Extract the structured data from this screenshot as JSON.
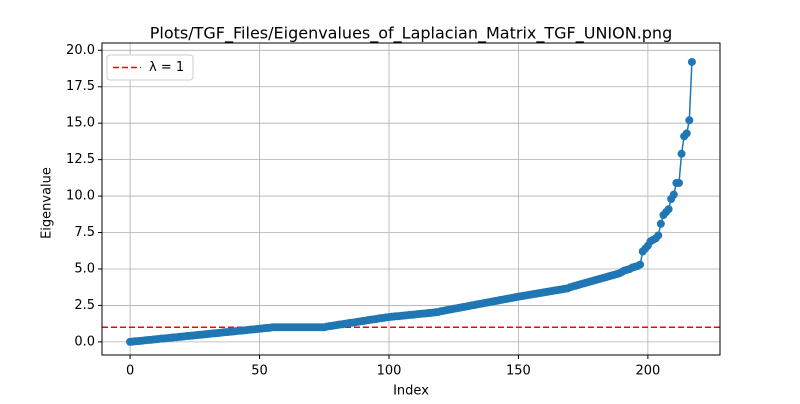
{
  "chart_data": {
    "type": "line",
    "title": "Plots/TGF_Files/Eigenvalues_of_Laplacian_Matrix_TGF_UNION.png",
    "x_label": "Index",
    "y_label": "Eigenvalue",
    "x": [
      0,
      1,
      2,
      3,
      4,
      5,
      6,
      7,
      8,
      9,
      10,
      11,
      12,
      13,
      14,
      15,
      16,
      17,
      18,
      19,
      20,
      21,
      22,
      23,
      24,
      25,
      26,
      27,
      28,
      29,
      30,
      31,
      32,
      33,
      34,
      35,
      36,
      37,
      38,
      39,
      40,
      41,
      42,
      43,
      44,
      45,
      46,
      47,
      48,
      49,
      50,
      51,
      52,
      53,
      54,
      55,
      56,
      57,
      58,
      59,
      60,
      61,
      62,
      63,
      64,
      65,
      66,
      67,
      68,
      69,
      70,
      71,
      72,
      73,
      74,
      75,
      76,
      77,
      78,
      79,
      80,
      81,
      82,
      83,
      84,
      85,
      86,
      87,
      88,
      89,
      90,
      91,
      92,
      93,
      94,
      95,
      96,
      97,
      98,
      99,
      100,
      101,
      102,
      103,
      104,
      105,
      106,
      107,
      108,
      109,
      110,
      111,
      112,
      113,
      114,
      115,
      116,
      117,
      118,
      119,
      120,
      121,
      122,
      123,
      124,
      125,
      126,
      127,
      128,
      129,
      130,
      131,
      132,
      133,
      134,
      135,
      136,
      137,
      138,
      139,
      140,
      141,
      142,
      143,
      144,
      145,
      146,
      147,
      148,
      149,
      150,
      151,
      152,
      153,
      154,
      155,
      156,
      157,
      158,
      159,
      160,
      161,
      162,
      163,
      164,
      165,
      166,
      167,
      168,
      169,
      170,
      171,
      172,
      173,
      174,
      175,
      176,
      177,
      178,
      179,
      180,
      181,
      182,
      183,
      184,
      185,
      186,
      187,
      188,
      189,
      190,
      191,
      192,
      193,
      194,
      195,
      196,
      197,
      198,
      199,
      200,
      201,
      202,
      203,
      204,
      205,
      206,
      207,
      208,
      209,
      210,
      211,
      212,
      213,
      214,
      215,
      216,
      217
    ],
    "series": [
      {
        "name": "Eigenvalues",
        "color": "#1f77b4",
        "values": [
          0,
          0.02,
          0.04,
          0.05,
          0.07,
          0.09,
          0.11,
          0.13,
          0.14,
          0.16,
          0.18,
          0.2,
          0.22,
          0.23,
          0.25,
          0.27,
          0.29,
          0.31,
          0.32,
          0.34,
          0.36,
          0.38,
          0.4,
          0.41,
          0.43,
          0.45,
          0.47,
          0.49,
          0.5,
          0.52,
          0.54,
          0.56,
          0.58,
          0.59,
          0.61,
          0.63,
          0.65,
          0.67,
          0.68,
          0.7,
          0.72,
          0.74,
          0.76,
          0.77,
          0.79,
          0.81,
          0.83,
          0.85,
          0.86,
          0.88,
          0.9,
          0.92,
          0.94,
          0.95,
          0.97,
          1,
          1,
          1,
          1,
          1,
          1,
          1,
          1,
          1,
          1,
          1,
          1,
          1,
          1,
          1,
          1,
          1,
          1,
          1,
          1,
          1,
          1.05,
          1.08,
          1.1,
          1.13,
          1.16,
          1.19,
          1.21,
          1.24,
          1.27,
          1.3,
          1.32,
          1.35,
          1.38,
          1.41,
          1.43,
          1.46,
          1.49,
          1.52,
          1.54,
          1.57,
          1.6,
          1.63,
          1.65,
          1.68,
          1.7,
          1.72,
          1.74,
          1.76,
          1.77,
          1.79,
          1.81,
          1.83,
          1.85,
          1.86,
          1.88,
          1.9,
          1.92,
          1.94,
          1.95,
          1.97,
          1.99,
          2.01,
          2.03,
          2.05,
          2.1,
          2.13,
          2.17,
          2.2,
          2.23,
          2.27,
          2.3,
          2.33,
          2.37,
          2.4,
          2.43,
          2.47,
          2.5,
          2.53,
          2.57,
          2.6,
          2.63,
          2.67,
          2.7,
          2.73,
          2.77,
          2.8,
          2.83,
          2.87,
          2.9,
          2.93,
          2.97,
          3,
          3.03,
          3.07,
          3.1,
          3.13,
          3.16,
          3.19,
          3.22,
          3.25,
          3.28,
          3.31,
          3.34,
          3.37,
          3.4,
          3.43,
          3.46,
          3.49,
          3.52,
          3.55,
          3.58,
          3.61,
          3.64,
          3.67,
          3.75,
          3.8,
          3.85,
          3.9,
          3.95,
          4,
          4.05,
          4.1,
          4.15,
          4.2,
          4.25,
          4.3,
          4.35,
          4.4,
          4.45,
          4.5,
          4.55,
          4.6,
          4.65,
          4.7,
          4.8,
          4.9,
          4.95,
          5,
          5.1,
          5.15,
          5.2,
          5.3,
          6.2,
          6.4,
          6.6,
          6.9,
          7.0,
          7.1,
          7.3,
          8.1,
          8.7,
          8.9,
          9.1,
          9.8,
          10.1,
          10.9,
          10.9,
          12.9,
          14.1,
          14.3,
          15.2,
          19.2
        ]
      }
    ],
    "hlines": [
      {
        "name": "λ = 1",
        "value": 1,
        "color": "#ff0000",
        "style": "dashed"
      }
    ],
    "xlim": [
      -10.85,
      227.85
    ],
    "ylim": [
      -0.9,
      20.5
    ],
    "xticks": [
      0,
      50,
      100,
      150,
      200
    ],
    "yticks": [
      {
        "value": 0,
        "label": "0.0"
      },
      {
        "value": 2.5,
        "label": "2.5"
      },
      {
        "value": 5,
        "label": "5.0"
      },
      {
        "value": 7.5,
        "label": "7.5"
      },
      {
        "value": 10,
        "label": "10.0"
      },
      {
        "value": 12.5,
        "label": "12.5"
      },
      {
        "value": 15,
        "label": "15.0"
      },
      {
        "value": 17.5,
        "label": "17.5"
      },
      {
        "value": 20,
        "label": "20.0"
      }
    ],
    "grid": true,
    "legend": "upper left"
  }
}
